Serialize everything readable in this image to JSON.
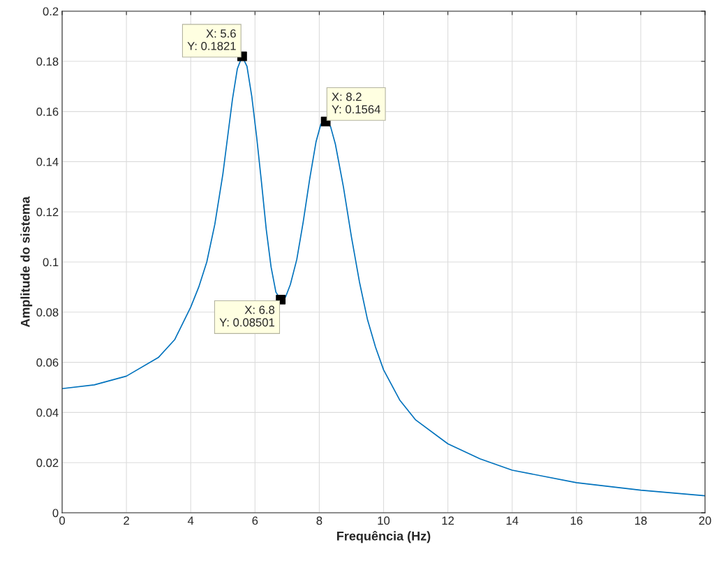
{
  "chart_data": {
    "type": "line",
    "xlabel": "Frequência (Hz)",
    "ylabel": "Amplitude do sistema",
    "xlim": [
      0,
      20
    ],
    "xticks": [
      0,
      2,
      4,
      6,
      8,
      10,
      12,
      14,
      16,
      18,
      20
    ],
    "ylim": [
      0,
      0.2
    ],
    "yticks": [
      0,
      0.02,
      0.04,
      0.06,
      0.08,
      0.1,
      0.12,
      0.14,
      0.16,
      0.18,
      0.2
    ],
    "grid": true,
    "series": [
      {
        "color": "#0072bd",
        "marker": "none",
        "x": [
          0,
          1,
          2,
          3,
          3.5,
          4,
          4.25,
          4.5,
          4.75,
          5,
          5.15,
          5.3,
          5.45,
          5.6,
          5.75,
          5.9,
          6.05,
          6.2,
          6.35,
          6.5,
          6.65,
          6.8,
          6.95,
          7.1,
          7.3,
          7.5,
          7.7,
          7.9,
          8.05,
          8.2,
          8.35,
          8.5,
          8.75,
          9,
          9.25,
          9.5,
          9.75,
          10,
          10.5,
          11,
          12,
          13,
          14,
          16,
          18,
          20
        ],
        "values": [
          0.0495,
          0.051,
          0.0545,
          0.062,
          0.069,
          0.082,
          0.09,
          0.1,
          0.115,
          0.135,
          0.15,
          0.165,
          0.177,
          0.182,
          0.178,
          0.166,
          0.15,
          0.132,
          0.113,
          0.098,
          0.088,
          0.085,
          0.086,
          0.091,
          0.101,
          0.116,
          0.133,
          0.148,
          0.155,
          0.156,
          0.154,
          0.147,
          0.13,
          0.11,
          0.092,
          0.077,
          0.066,
          0.057,
          0.045,
          0.037,
          0.0275,
          0.0215,
          0.017,
          0.012,
          0.009,
          0.0068
        ]
      },
      {
        "type": "scatter",
        "color": "#000000",
        "marker": "square",
        "x": [
          5.6,
          8.2,
          6.8
        ],
        "values": [
          0.182,
          0.156,
          0.085
        ]
      }
    ],
    "annotations": [
      {
        "text": "X: 5.6\nY: 0.1821",
        "x": 5.6,
        "y": 0.182
      },
      {
        "text": "X: 8.2\nY: 0.1564",
        "x": 8.2,
        "y": 0.156
      },
      {
        "text": "X: 6.8\nY: 0.08501",
        "x": 6.8,
        "y": 0.085
      }
    ]
  }
}
